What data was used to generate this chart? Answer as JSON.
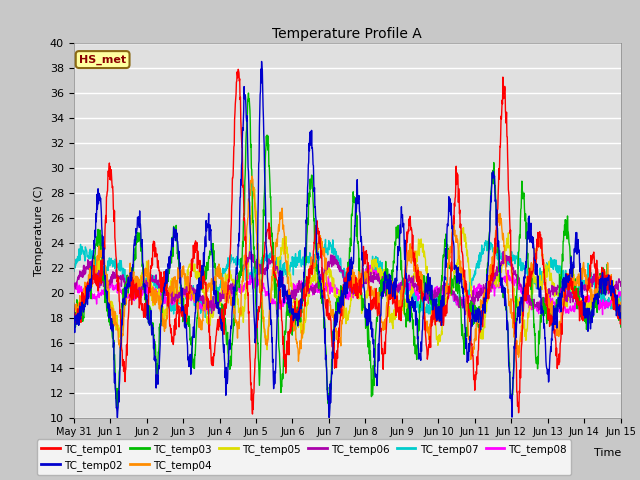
{
  "title": "Temperature Profile A",
  "xlabel": "Time",
  "ylabel": "Temperature (C)",
  "ylim": [
    10,
    40
  ],
  "yticks": [
    10,
    12,
    14,
    16,
    18,
    20,
    22,
    24,
    26,
    28,
    30,
    32,
    34,
    36,
    38,
    40
  ],
  "fig_bg": "#c8c8c8",
  "ax_bg": "#e0e0e0",
  "annotation_text": "HS_met",
  "annotation_color": "#8B0000",
  "annotation_bg": "#FFFFA0",
  "annotation_edge": "#8B6914",
  "series_colors": {
    "TC_temp01": "#FF0000",
    "TC_temp02": "#0000CD",
    "TC_temp03": "#00BB00",
    "TC_temp04": "#FF8C00",
    "TC_temp05": "#DDDD00",
    "TC_temp06": "#AA00AA",
    "TC_temp07": "#00CCCC",
    "TC_temp08": "#FF00FF"
  },
  "x_ticks": [
    0,
    1,
    2,
    3,
    4,
    5,
    6,
    7,
    8,
    9,
    10,
    11,
    12,
    13,
    14,
    15
  ],
  "x_tick_labels": [
    "May 31",
    "Jun 1",
    "Jun 2",
    "Jun 3",
    "Jun 4",
    "Jun 5",
    "Jun 6",
    "Jun 7",
    "Jun 8",
    "Jun 9",
    "Jun 10",
    "Jun 11",
    "Jun 12",
    "Jun 13",
    "Jun 14",
    "Jun 15"
  ]
}
